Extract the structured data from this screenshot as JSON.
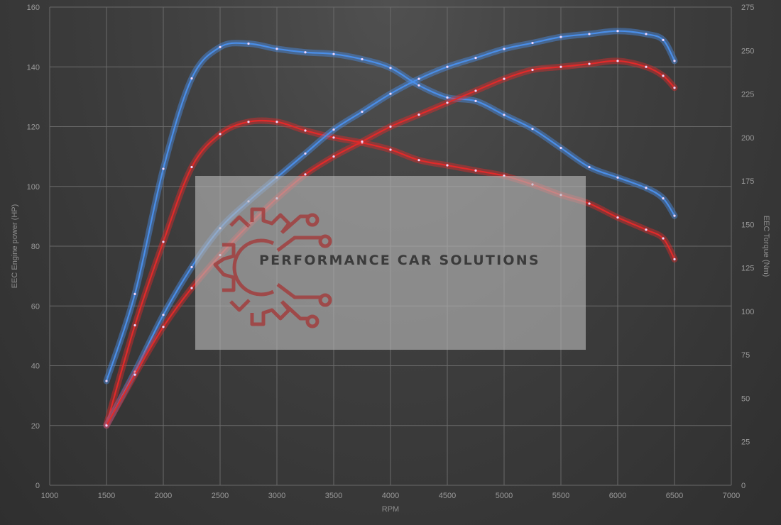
{
  "watermark": {
    "text": "PERFORMANCE CAR SOLUTIONS"
  },
  "chart_data": {
    "type": "line",
    "xlabel": "RPM",
    "ylabel_left": "EEC Engine power (HP)",
    "ylabel_right": "EEC Torque (Nm)",
    "xlim": [
      1000,
      7000
    ],
    "ylim_left": [
      0,
      160
    ],
    "ylim_right": [
      0,
      275
    ],
    "x_ticks": [
      1000,
      1500,
      2000,
      2500,
      3000,
      3500,
      4000,
      4500,
      5000,
      5500,
      6000,
      6500,
      7000
    ],
    "y_left_ticks": [
      0,
      20,
      40,
      60,
      80,
      100,
      120,
      140,
      160
    ],
    "y_right_ticks": [
      0,
      25,
      50,
      75,
      100,
      125,
      150,
      175,
      200,
      225,
      250,
      275
    ],
    "grid": true,
    "series": [
      {
        "color": "#4a8ee8",
        "axis": "right",
        "x": [
          1500,
          1750,
          2000,
          2250,
          2500,
          2750,
          3000,
          3250,
          3500,
          3750,
          4000,
          4250,
          4500,
          4750,
          5000,
          5250,
          5500,
          5750,
          6000,
          6250,
          6400,
          6500
        ],
        "y": [
          60,
          110,
          182,
          234,
          252,
          254,
          251,
          249,
          248,
          245,
          240,
          230,
          223,
          221,
          213,
          205,
          194,
          183,
          177,
          171,
          165,
          155
        ]
      },
      {
        "color": "#e02a2a",
        "axis": "right",
        "x": [
          1500,
          1750,
          2000,
          2250,
          2500,
          2750,
          3000,
          3250,
          3500,
          3750,
          4000,
          4250,
          4500,
          4750,
          5000,
          5250,
          5500,
          5750,
          6000,
          6250,
          6400,
          6500
        ],
        "y": [
          35,
          92,
          140,
          183,
          202,
          209,
          209,
          204,
          200,
          197,
          193,
          187,
          184,
          181,
          178,
          173,
          167,
          162,
          154,
          147,
          142,
          130
        ]
      },
      {
        "color": "#4a8ee8",
        "axis": "left",
        "x": [
          1500,
          1750,
          2000,
          2250,
          2500,
          2750,
          3000,
          3250,
          3500,
          3750,
          4000,
          4250,
          4500,
          4750,
          5000,
          5250,
          5500,
          5750,
          6000,
          6250,
          6400,
          6500
        ],
        "y": [
          20,
          38,
          57,
          73,
          86,
          95,
          103,
          111,
          119,
          125,
          131,
          136,
          140,
          143,
          146,
          148,
          150,
          151,
          152,
          151,
          149,
          142
        ]
      },
      {
        "color": "#e02a2a",
        "axis": "left",
        "x": [
          1500,
          1750,
          2000,
          2250,
          2500,
          2750,
          3000,
          3250,
          3500,
          3750,
          4000,
          4250,
          4500,
          4750,
          5000,
          5250,
          5500,
          5750,
          6000,
          6250,
          6400,
          6500
        ],
        "y": [
          20,
          37,
          53,
          66,
          77,
          87,
          96,
          104,
          110,
          115,
          120,
          124,
          128,
          132,
          136,
          139,
          140,
          141,
          142,
          140,
          137,
          133
        ]
      }
    ]
  }
}
